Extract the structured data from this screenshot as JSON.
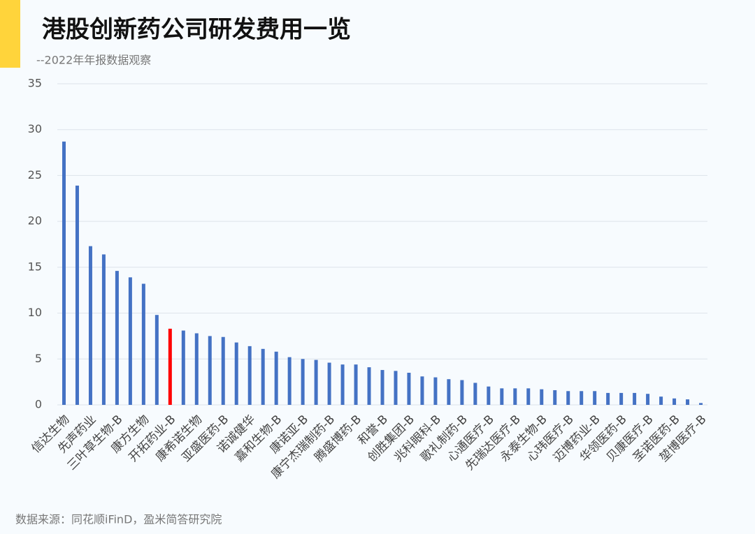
{
  "chart_data": {
    "type": "bar",
    "title": "港股创新药公司研发费用一览",
    "subtitle": "--2022年年报数据观察",
    "source": "数据来源：同花顺iFinD，盈米简答研究院",
    "categories": [
      "信达生物",
      null,
      "先声药业",
      null,
      "三叶草生物-B",
      null,
      "康方生物",
      null,
      "开拓药业-B",
      null,
      "康希诺生物",
      null,
      "亚盛医药-B",
      null,
      "诺诚健华",
      null,
      "嘉和生物-B",
      null,
      "康诺亚-B",
      null,
      "康宁杰瑞制药-B",
      null,
      "腾盛博药-B",
      null,
      "和誉-B",
      null,
      "创胜集团-B",
      null,
      "兆科眼科-B",
      null,
      "歌礼制药-B",
      null,
      "心通医疗-B",
      null,
      "先瑞达医疗-B",
      null,
      "永泰生物-B",
      null,
      "心玮医疗-B",
      null,
      "迈博药业-B",
      null,
      "华领医药-B",
      null,
      "贝康医疗-B",
      null,
      "圣诺医药-B",
      null,
      "堃博医疗-B"
    ],
    "values": [
      28.7,
      23.9,
      17.3,
      16.4,
      14.6,
      13.9,
      13.2,
      9.8,
      8.3,
      8.1,
      7.8,
      7.5,
      7.4,
      6.8,
      6.4,
      6.1,
      5.8,
      5.2,
      5.0,
      4.9,
      4.6,
      4.4,
      4.4,
      4.1,
      3.8,
      3.7,
      3.5,
      3.1,
      3.0,
      2.8,
      2.7,
      2.4,
      2.0,
      1.8,
      1.8,
      1.8,
      1.7,
      1.6,
      1.5,
      1.5,
      1.5,
      1.3,
      1.3,
      1.3,
      1.2,
      0.9,
      0.7,
      0.6,
      0.2
    ],
    "colors": [
      "#4472c4",
      "#4472c4",
      "#4472c4",
      "#4472c4",
      "#4472c4",
      "#4472c4",
      "#4472c4",
      "#4472c4",
      "#ff0000",
      "#4472c4",
      "#4472c4",
      "#4472c4",
      "#4472c4",
      "#4472c4",
      "#4472c4",
      "#4472c4",
      "#4472c4",
      "#4472c4",
      "#4472c4",
      "#4472c4",
      "#4472c4",
      "#4472c4",
      "#4472c4",
      "#4472c4",
      "#4472c4",
      "#4472c4",
      "#4472c4",
      "#4472c4",
      "#4472c4",
      "#4472c4",
      "#4472c4",
      "#4472c4",
      "#4472c4",
      "#4472c4",
      "#4472c4",
      "#4472c4",
      "#4472c4",
      "#4472c4",
      "#4472c4",
      "#4472c4",
      "#4472c4",
      "#4472c4",
      "#4472c4",
      "#4472c4",
      "#4472c4",
      "#4472c4",
      "#4472c4",
      "#4472c4",
      "#4472c4"
    ],
    "ylim": [
      0,
      35
    ],
    "yticks": [
      0,
      5,
      10,
      15,
      20,
      25,
      30,
      35
    ],
    "grid": true
  }
}
